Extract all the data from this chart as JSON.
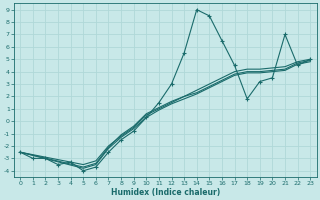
{
  "xlabel": "Humidex (Indice chaleur)",
  "bg_color": "#c8e8e8",
  "line_color": "#1a6b6b",
  "grid_color": "#b0d8d8",
  "xlim": [
    -0.5,
    23.5
  ],
  "ylim": [
    -4.5,
    9.5
  ],
  "xticks": [
    0,
    1,
    2,
    3,
    4,
    5,
    6,
    7,
    8,
    9,
    10,
    11,
    12,
    13,
    14,
    15,
    16,
    17,
    18,
    19,
    20,
    21,
    22,
    23
  ],
  "yticks": [
    -4,
    -3,
    -2,
    -1,
    0,
    1,
    2,
    3,
    4,
    5,
    6,
    7,
    8,
    9
  ],
  "curve_main_x": [
    0,
    1,
    2,
    3,
    4,
    5,
    6,
    7,
    8,
    9,
    10,
    11,
    12,
    13,
    14,
    15,
    16,
    17,
    18,
    19,
    20,
    21,
    22,
    23
  ],
  "curve_main_y": [
    -2.5,
    -3.0,
    -3.0,
    -3.5,
    -3.3,
    -4.0,
    -3.7,
    -2.5,
    -1.5,
    -0.8,
    0.3,
    1.5,
    3.0,
    5.5,
    9.0,
    8.5,
    6.5,
    4.5,
    1.8,
    3.2,
    3.5,
    7.0,
    4.5,
    5.0
  ],
  "curve_lin1_x": [
    0,
    5,
    6,
    7,
    8,
    9,
    10,
    11,
    12,
    13,
    14,
    15,
    16,
    17,
    18,
    19,
    20,
    21,
    22,
    23
  ],
  "curve_lin1_y": [
    -2.5,
    -3.5,
    -3.2,
    -2.0,
    -1.2,
    -0.5,
    0.5,
    1.0,
    1.5,
    2.0,
    2.5,
    3.0,
    3.5,
    4.0,
    4.2,
    4.2,
    4.3,
    4.4,
    4.8,
    5.0
  ],
  "curve_lin2_x": [
    0,
    5,
    6,
    7,
    8,
    9,
    10,
    11,
    12,
    13,
    14,
    15,
    16,
    17,
    18,
    19,
    20,
    21,
    22,
    23
  ],
  "curve_lin2_y": [
    -2.5,
    -3.8,
    -3.5,
    -2.2,
    -1.3,
    -0.6,
    0.3,
    0.9,
    1.4,
    1.8,
    2.2,
    2.7,
    3.2,
    3.7,
    3.9,
    3.9,
    4.0,
    4.1,
    4.6,
    4.8
  ],
  "curve_lin3_x": [
    0,
    5,
    6,
    7,
    8,
    9,
    10,
    11,
    12,
    13,
    14,
    15,
    16,
    17,
    18,
    19,
    20,
    21,
    22,
    23
  ],
  "curve_lin3_y": [
    -2.5,
    -3.7,
    -3.4,
    -2.1,
    -1.1,
    -0.4,
    0.6,
    1.1,
    1.6,
    2.0,
    2.3,
    2.8,
    3.3,
    3.8,
    4.0,
    4.0,
    4.1,
    4.2,
    4.7,
    4.9
  ]
}
